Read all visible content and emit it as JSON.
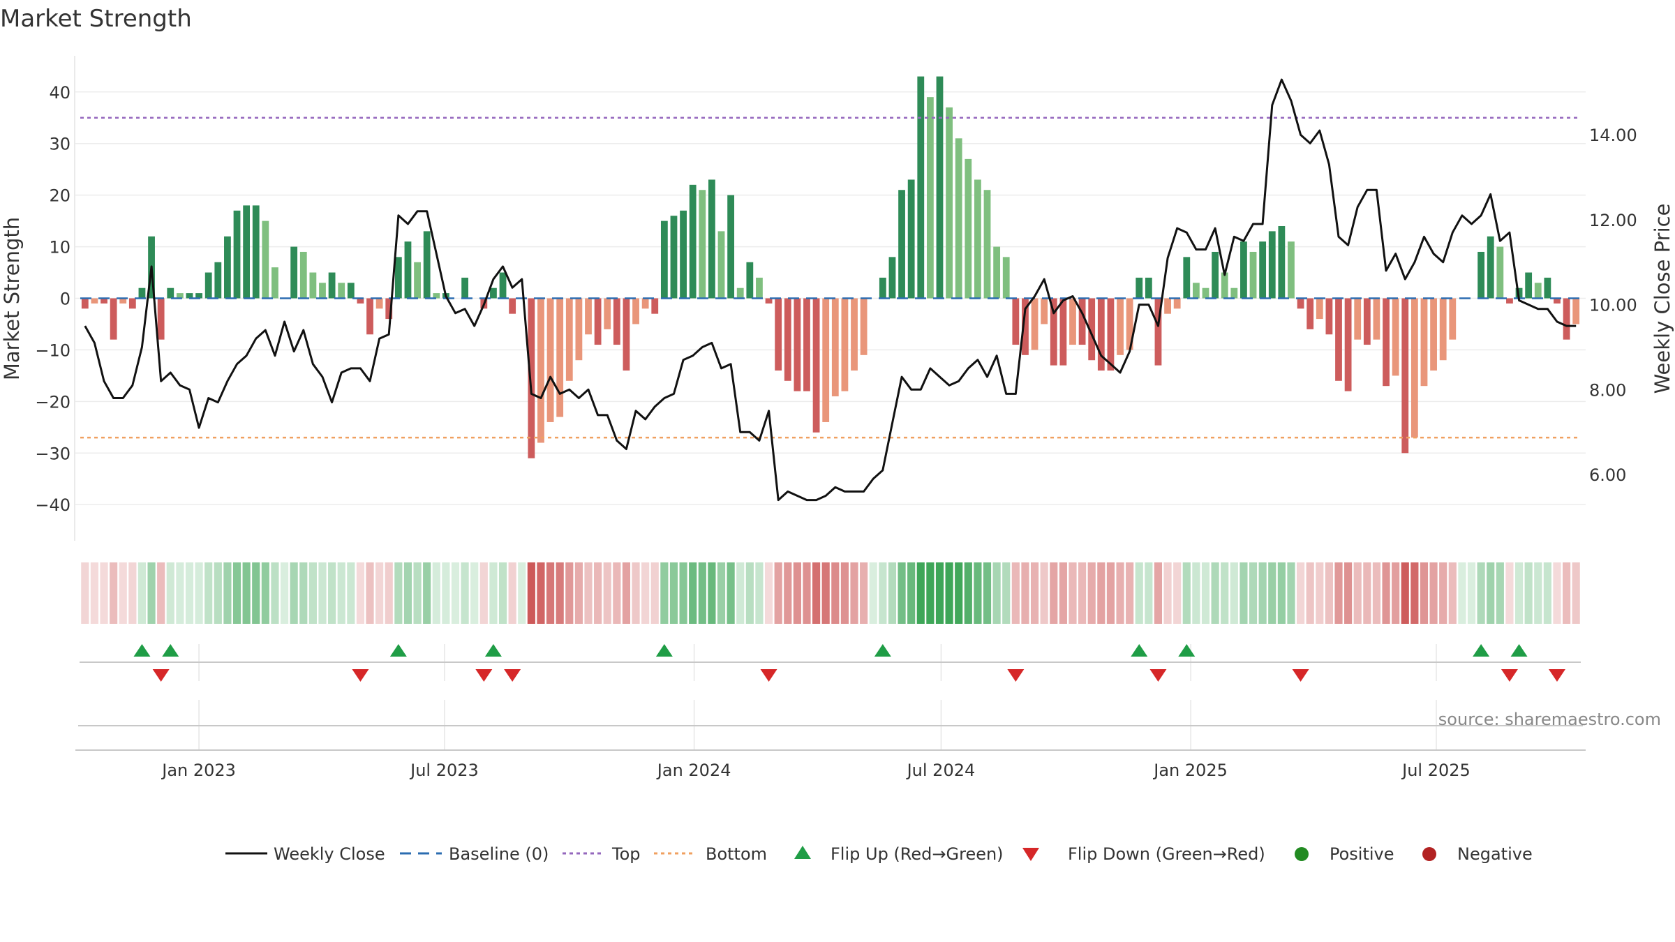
{
  "chart_data": {
    "type": "bar",
    "title": "Market Strength",
    "ylabel_left": "Market Strength",
    "ylabel_right": "Weekly Close Price",
    "source_text": "source: sharemaestro.com",
    "x_start": "2022-10-09",
    "week_days": 7,
    "left_axis": {
      "range": [
        -47,
        47
      ],
      "ticks": [
        40,
        30,
        20,
        10,
        0,
        -10,
        -20,
        -30,
        -40
      ],
      "tick_labels": [
        "40",
        "30",
        "20",
        "10",
        "0",
        "−10",
        "−20",
        "−30",
        "−40"
      ]
    },
    "right_axis": {
      "range": [
        4.44,
        15.86
      ],
      "ticks": [
        14,
        12,
        10,
        8,
        6
      ],
      "tick_labels": [
        "14.00",
        "12.00",
        "10.00",
        "8.00",
        "6.00"
      ]
    },
    "date_axis": {
      "ticks": [
        "2023-01-01",
        "2023-07-01",
        "2024-01-01",
        "2024-07-01",
        "2025-01-01",
        "2025-07-01"
      ],
      "tick_labels": [
        "Jan 2023",
        "Jul 2023",
        "Jan 2024",
        "Jul 2024",
        "Jan 2025",
        "Jul 2025"
      ]
    },
    "top_line": 35,
    "bottom_line": -27,
    "baseline": 0,
    "strength": [
      -2,
      -1,
      -1,
      -8,
      -1,
      -2,
      2,
      12,
      -8,
      2,
      1,
      1,
      1,
      5,
      7,
      12,
      17,
      18,
      18,
      15,
      6,
      0,
      10,
      9,
      5,
      3,
      5,
      3,
      3,
      -1,
      -7,
      -2,
      -4,
      8,
      11,
      7,
      13,
      1,
      1,
      0,
      4,
      0,
      -2,
      2,
      5,
      -3,
      0,
      -31,
      -28,
      -24,
      -23,
      -16,
      -12,
      -7,
      -9,
      -6,
      -9,
      -14,
      -5,
      -2,
      -3,
      15,
      16,
      17,
      22,
      21,
      23,
      13,
      20,
      2,
      7,
      4,
      -1,
      -14,
      -16,
      -18,
      -18,
      -26,
      -24,
      -19,
      -18,
      -14,
      -11,
      0,
      4,
      8,
      21,
      23,
      43,
      39,
      43,
      37,
      31,
      27,
      23,
      21,
      10,
      8,
      -9,
      -11,
      -10,
      -5,
      -13,
      -13,
      -9,
      -9,
      -12,
      -14,
      -14,
      -11,
      -10,
      4,
      4,
      -13,
      -3,
      -2,
      8,
      3,
      2,
      9,
      5,
      2,
      11,
      9,
      11,
      13,
      14,
      11,
      -2,
      -6,
      -4,
      -7,
      -16,
      -18,
      -8,
      -9,
      -8,
      -17,
      -15,
      -30,
      -27,
      -17,
      -14,
      -12,
      -8,
      0,
      0,
      9,
      12,
      10,
      -1,
      2,
      5,
      3,
      4,
      -1,
      -8,
      -5
    ],
    "close": [
      9.5,
      9.1,
      8.2,
      7.8,
      7.8,
      8.1,
      9.0,
      10.9,
      8.2,
      8.4,
      8.1,
      8.0,
      7.1,
      7.8,
      7.7,
      8.2,
      8.6,
      8.8,
      9.2,
      9.4,
      8.8,
      9.6,
      8.9,
      9.4,
      8.6,
      8.3,
      7.7,
      8.4,
      8.5,
      8.5,
      8.2,
      9.2,
      9.3,
      12.1,
      11.9,
      12.2,
      12.2,
      11.2,
      10.2,
      9.8,
      9.9,
      9.5,
      10.0,
      10.6,
      10.9,
      10.4,
      10.6,
      7.9,
      7.8,
      8.3,
      7.9,
      8.0,
      7.8,
      8.0,
      7.4,
      7.4,
      6.8,
      6.6,
      7.5,
      7.3,
      7.6,
      7.8,
      7.9,
      8.7,
      8.8,
      9.0,
      9.1,
      8.5,
      8.6,
      7.0,
      7.0,
      6.8,
      7.5,
      5.4,
      5.6,
      5.5,
      5.4,
      5.4,
      5.5,
      5.7,
      5.6,
      5.6,
      5.6,
      5.9,
      6.1,
      7.2,
      8.3,
      8.0,
      8.0,
      8.5,
      8.3,
      8.1,
      8.2,
      8.5,
      8.7,
      8.3,
      8.8,
      7.9,
      7.9,
      9.9,
      10.2,
      10.6,
      9.8,
      10.1,
      10.2,
      9.8,
      9.3,
      8.8,
      8.6,
      8.4,
      8.9,
      10.0,
      10.0,
      9.5,
      11.1,
      11.8,
      11.7,
      11.3,
      11.3,
      11.8,
      10.7,
      11.6,
      11.5,
      11.9,
      11.9,
      14.7,
      15.3,
      14.8,
      14.0,
      13.8,
      14.1,
      13.3,
      11.6,
      11.4,
      12.3,
      12.7,
      12.7,
      10.8,
      11.2,
      10.6,
      11.0,
      11.6,
      11.2,
      11.0,
      11.7,
      12.1,
      11.9,
      12.1,
      12.6,
      11.5,
      11.7,
      10.1,
      10.0,
      9.9,
      9.9,
      9.6,
      9.5,
      9.5
    ],
    "series": [
      {
        "name": "Weekly Close",
        "color": "#111111"
      },
      {
        "name": "Baseline (0)",
        "color": "#2b6cb0"
      },
      {
        "name": "Top",
        "color": "#9467bd"
      },
      {
        "name": "Bottom",
        "color": "#f0a060"
      }
    ],
    "legend": [
      "Weekly Close",
      "Baseline (0)",
      "Top",
      "Bottom",
      "Flip Up (Red→Green)",
      "Flip Down (Green→Red)",
      "Positive",
      "Negative"
    ],
    "colors": {
      "pos_strong": "#2e8b57",
      "pos_light": "#7fbf7f",
      "neg_strong": "#cd5c5c",
      "neg_light": "#e9967a",
      "flip_up": "#1f9d46",
      "flip_down": "#d62728",
      "positive_dot": "#228b22",
      "negative_dot": "#b22222"
    }
  }
}
